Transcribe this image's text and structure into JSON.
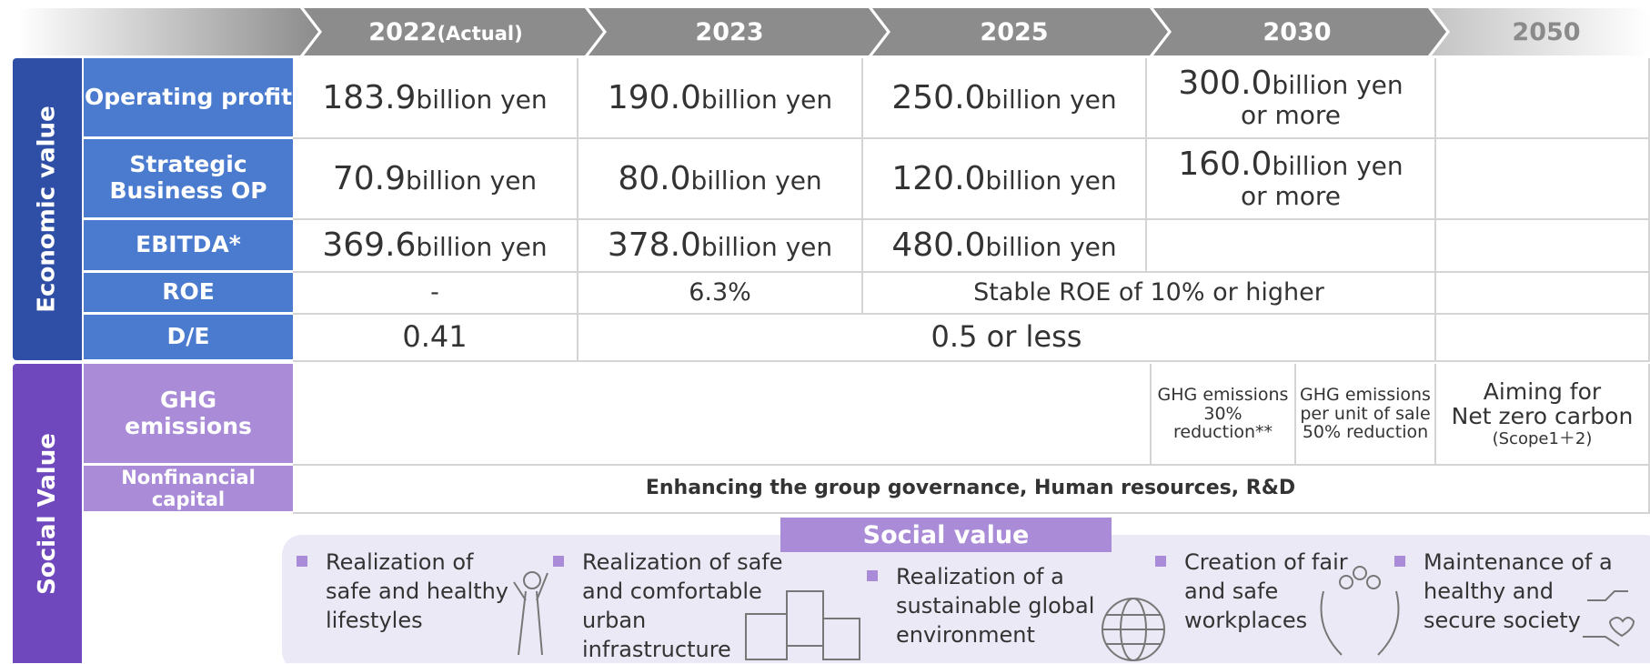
{
  "header": {
    "columns": [
      {
        "year": "2022",
        "note": "(Actual)"
      },
      {
        "year": "2023"
      },
      {
        "year": "2025"
      },
      {
        "year": "2030"
      },
      {
        "year": "2050"
      }
    ]
  },
  "sections": [
    "Economic value",
    "Social Value"
  ],
  "economic_rows": [
    {
      "label_lines": [
        "Operating profit"
      ],
      "cells": [
        {
          "value": "183.9",
          "unit": "billion yen"
        },
        {
          "value": "190.0",
          "unit": "billion yen"
        },
        {
          "value": "250.0",
          "unit": "billion yen"
        },
        {
          "value": "300.0",
          "unit": "billion yen",
          "suffix": "or more"
        }
      ]
    },
    {
      "label_lines": [
        "Strategic",
        "Business OP"
      ],
      "cells": [
        {
          "value": "70.9",
          "unit": "billion yen"
        },
        {
          "value": "80.0",
          "unit": "billion yen"
        },
        {
          "value": "120.0",
          "unit": "billion yen"
        },
        {
          "value": "160.0",
          "unit": "billion yen",
          "suffix": "or more"
        }
      ]
    },
    {
      "label_lines": [
        "EBITDA*"
      ],
      "cells": [
        {
          "value": "369.6",
          "unit": "billion yen"
        },
        {
          "value": "378.0",
          "unit": "billion yen"
        },
        {
          "value": "480.0",
          "unit": "billion yen"
        }
      ]
    },
    {
      "label_lines": [
        "ROE"
      ],
      "cells": [
        {
          "text": "-"
        },
        {
          "text": "6.3%"
        },
        {
          "text": "Stable ROE of 10% or higher"
        }
      ]
    },
    {
      "label_lines": [
        "D/E"
      ],
      "cells": [
        {
          "value": "0.41"
        },
        {
          "value": "0.5 or less"
        }
      ]
    }
  ],
  "ghg": {
    "label_lines": [
      "GHG",
      "emissions"
    ],
    "target_2030": [
      "GHG emissions",
      "30% reduction**"
    ],
    "target_2030_unit": [
      "GHG emissions",
      "per unit of sale",
      "50% reduction"
    ],
    "target_2050": [
      "Aiming for",
      "Net zero carbon"
    ],
    "target_2050_note": "(Scope1＋2)"
  },
  "nonfinancial": {
    "label": "Nonfinancial capital",
    "text": "Enhancing the group governance, Human resources, R&D"
  },
  "social_value": {
    "title": "Social value",
    "items": [
      [
        "Realization of",
        "safe and healthy",
        "lifestyles"
      ],
      [
        "Realization of safe",
        "and comfortable",
        "urban",
        "infrastructure"
      ],
      [
        "Realization of a",
        "sustainable global",
        "environment"
      ],
      [
        "Creation of fair",
        "and safe",
        "workplaces"
      ],
      [
        "Maintenance of a",
        "healthy and",
        "secure society"
      ]
    ]
  }
}
